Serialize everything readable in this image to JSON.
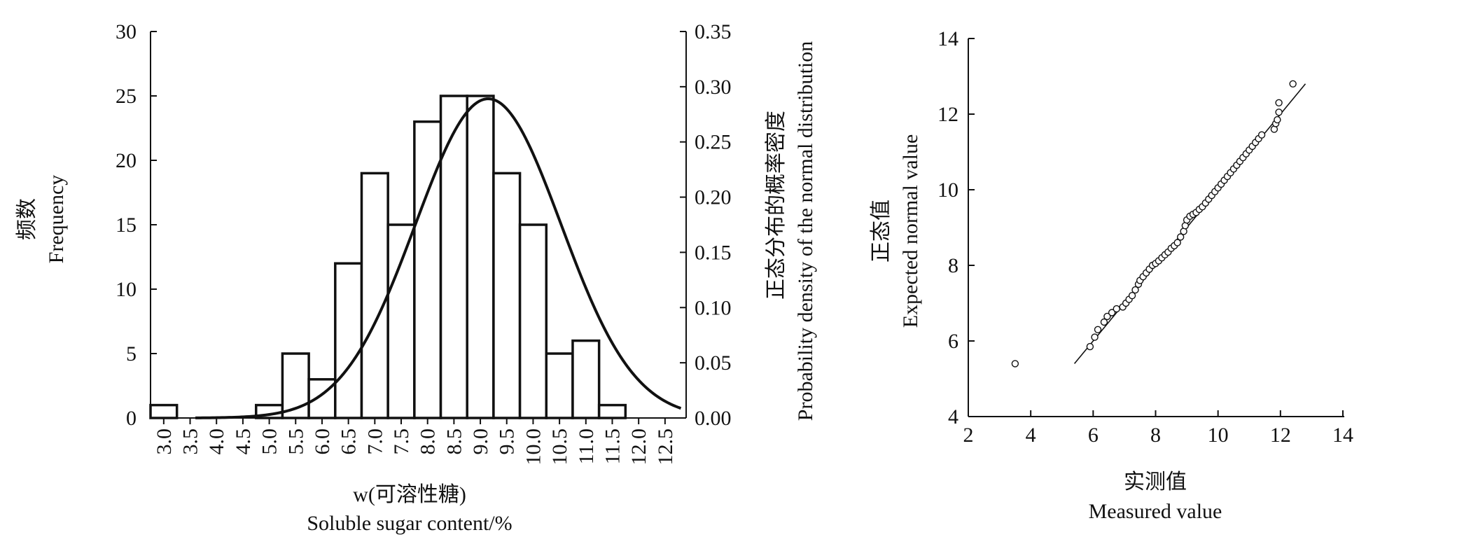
{
  "chart_data": [
    {
      "type": "bar",
      "subtype": "histogram-with-normal-curve",
      "categories": [
        "3.0",
        "3.5",
        "4.0",
        "4.5",
        "5.0",
        "5.5",
        "6.0",
        "6.5",
        "7.0",
        "7.5",
        "8.0",
        "8.5",
        "9.0",
        "9.5",
        "10.0",
        "10.5",
        "11.0",
        "11.5",
        "12.0",
        "12.5"
      ],
      "bin_start": 2.75,
      "bin_width": 0.5,
      "values": [
        1,
        0,
        0,
        0,
        1,
        5,
        3,
        12,
        19,
        15,
        23,
        25,
        25,
        19,
        15,
        5,
        6,
        1,
        0,
        0
      ],
      "ylabel_zh": "频数",
      "ylabel_en": "Frequency",
      "y2label_zh": "正态分布的概率密度",
      "y2label_en": "Probability density of the normal distribution",
      "xlabel_zh": "w(可溶性糖)",
      "xlabel_en": "Soluble sugar content/%",
      "ylim": [
        0,
        30
      ],
      "yticks": [
        0,
        5,
        10,
        15,
        20,
        25,
        30
      ],
      "y2lim": [
        0,
        0.35
      ],
      "y2ticks": [
        "0.00",
        "0.05",
        "0.10",
        "0.15",
        "0.20",
        "0.25",
        "0.30",
        "0.35"
      ],
      "normal_curve": {
        "mean": 9.15,
        "sd": 1.38,
        "x_from": 3.6,
        "x_to": 12.8
      }
    },
    {
      "type": "scatter",
      "subtype": "normal-qq-plot",
      "xlabel_zh": "实测值",
      "xlabel_en": "Measured value",
      "ylabel_zh": "正态值",
      "ylabel_en": "Expected normal value",
      "xlim": [
        2,
        14
      ],
      "ylim": [
        4,
        14
      ],
      "xticks": [
        2,
        4,
        6,
        8,
        10,
        12,
        14
      ],
      "yticks": [
        4,
        6,
        8,
        10,
        12,
        14
      ],
      "reference_line": [
        [
          5.4,
          5.4
        ],
        [
          12.8,
          12.8
        ]
      ],
      "points": [
        [
          3.5,
          5.4
        ],
        [
          5.9,
          5.85
        ],
        [
          6.05,
          6.1
        ],
        [
          6.15,
          6.3
        ],
        [
          6.35,
          6.5
        ],
        [
          6.45,
          6.65
        ],
        [
          6.6,
          6.75
        ],
        [
          6.75,
          6.85
        ],
        [
          6.95,
          6.9
        ],
        [
          7.05,
          7.0
        ],
        [
          7.15,
          7.1
        ],
        [
          7.25,
          7.2
        ],
        [
          7.35,
          7.35
        ],
        [
          7.45,
          7.5
        ],
        [
          7.5,
          7.6
        ],
        [
          7.6,
          7.7
        ],
        [
          7.7,
          7.8
        ],
        [
          7.8,
          7.9
        ],
        [
          7.9,
          8.0
        ],
        [
          8.0,
          8.05
        ],
        [
          8.1,
          8.12
        ],
        [
          8.2,
          8.2
        ],
        [
          8.3,
          8.28
        ],
        [
          8.4,
          8.35
        ],
        [
          8.5,
          8.45
        ],
        [
          8.6,
          8.52
        ],
        [
          8.7,
          8.6
        ],
        [
          8.8,
          8.75
        ],
        [
          8.9,
          8.9
        ],
        [
          8.95,
          9.05
        ],
        [
          9.0,
          9.2
        ],
        [
          9.1,
          9.3
        ],
        [
          9.2,
          9.35
        ],
        [
          9.3,
          9.4
        ],
        [
          9.4,
          9.48
        ],
        [
          9.5,
          9.55
        ],
        [
          9.6,
          9.65
        ],
        [
          9.7,
          9.75
        ],
        [
          9.8,
          9.85
        ],
        [
          9.9,
          9.95
        ],
        [
          10.0,
          10.05
        ],
        [
          10.1,
          10.15
        ],
        [
          10.2,
          10.25
        ],
        [
          10.3,
          10.35
        ],
        [
          10.4,
          10.45
        ],
        [
          10.5,
          10.55
        ],
        [
          10.6,
          10.65
        ],
        [
          10.7,
          10.75
        ],
        [
          10.8,
          10.85
        ],
        [
          10.9,
          10.95
        ],
        [
          11.0,
          11.05
        ],
        [
          11.1,
          11.15
        ],
        [
          11.2,
          11.25
        ],
        [
          11.3,
          11.35
        ],
        [
          11.4,
          11.45
        ],
        [
          11.8,
          11.6
        ],
        [
          11.85,
          11.75
        ],
        [
          11.9,
          11.85
        ],
        [
          11.95,
          12.05
        ],
        [
          11.95,
          12.3
        ],
        [
          12.4,
          12.8
        ]
      ]
    }
  ]
}
